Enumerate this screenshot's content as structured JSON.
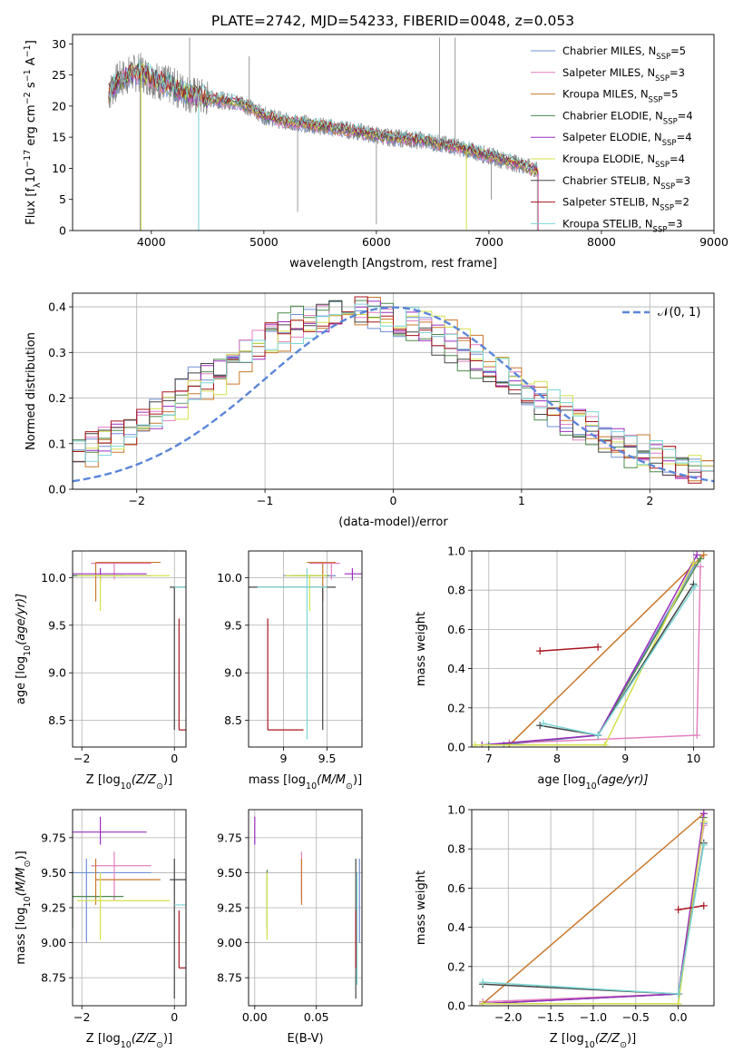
{
  "title": "PLATE=2742, MJD=54233, FIBERID=0048, z=0.053",
  "colors": {
    "Chabrier MILES": "#6f8fd6",
    "Salpeter MILES": "#e37fc0",
    "Kroupa MILES": "#c8782b",
    "Chabrier ELODIE": "#4b8a4b",
    "Salpeter ELODIE": "#9b2fc0",
    "Kroupa ELODIE": "#d4e04a",
    "Chabrier STELIB": "#454545",
    "Salpeter STELIB": "#a8151e",
    "Kroupa STELIB": "#7cd6d6",
    "normal": "#5b86d9",
    "data": "#808080"
  },
  "chart_data": [
    {
      "id": "spectrum",
      "type": "line",
      "title": "PLATE=2742, MJD=54233, FIBERID=0048, z=0.053",
      "xlabel": "wavelength [Angstrom, rest frame]",
      "ylabel_main": "Flux [f",
      "ylabel_sub": "λ",
      "ylabel_rest": "10",
      "ylabel_sup1": "−17",
      "ylabel_mid": " erg cm",
      "ylabel_sup2": "−2",
      "ylabel_mid2": " s",
      "ylabel_sup3": "−1",
      "ylabel_end": " A",
      "ylabel_sup4": "−1",
      "ylabel_close": "]",
      "xlim": [
        3300,
        9000
      ],
      "ylim": [
        0,
        31.5
      ],
      "xticks": [
        4000,
        5000,
        6000,
        7000,
        8000,
        9000
      ],
      "yticks": [
        0,
        5,
        10,
        15,
        20,
        25,
        30
      ],
      "grid": false,
      "legend_position": "top-right",
      "legend": [
        {
          "model": "Chabrier MILES",
          "nssp": "5"
        },
        {
          "model": "Salpeter MILES",
          "nssp": "3"
        },
        {
          "model": "Kroupa MILES",
          "nssp": "5"
        },
        {
          "model": "Chabrier ELODIE",
          "nssp": "4"
        },
        {
          "model": "Salpeter ELODIE",
          "nssp": "4"
        },
        {
          "model": "Kroupa ELODIE",
          "nssp": "4"
        },
        {
          "model": "Chabrier STELIB",
          "nssp": "3"
        },
        {
          "model": "Salpeter STELIB",
          "nssp": "2"
        },
        {
          "model": "Kroupa STELIB",
          "nssp": "3"
        }
      ],
      "legend_label_fmt": ", N",
      "legend_sub": "SSP",
      "continuum": [
        [
          3620,
          22
        ],
        [
          3700,
          24
        ],
        [
          3800,
          25
        ],
        [
          3900,
          25.5
        ],
        [
          4000,
          24.5
        ],
        [
          4200,
          23
        ],
        [
          4400,
          21.5
        ],
        [
          4600,
          21
        ],
        [
          4800,
          20.5
        ],
        [
          5000,
          18.5
        ],
        [
          5200,
          17.5
        ],
        [
          5500,
          16.8
        ],
        [
          5800,
          16
        ],
        [
          6100,
          15
        ],
        [
          6400,
          14.5
        ],
        [
          6700,
          13.5
        ],
        [
          6900,
          12.5
        ],
        [
          7100,
          11.5
        ],
        [
          7300,
          10.5
        ],
        [
          7440,
          9.5
        ]
      ]
    },
    {
      "id": "residuals",
      "type": "line",
      "xlabel": "(data-model)/error",
      "ylabel": "Normed distribution",
      "xlim": [
        -2.5,
        2.5
      ],
      "ylim": [
        0,
        0.43
      ],
      "xticks": [
        -2,
        -1,
        0,
        1,
        2
      ],
      "yticks": [
        0.0,
        0.1,
        0.2,
        0.3,
        0.4
      ],
      "grid": true,
      "legend_position": "top-right",
      "legend_label": "𝒩(0, 1)",
      "normal": {
        "mean": 0,
        "sigma": 1
      },
      "hist_bins": {
        "start": -2.5,
        "width": 0.1,
        "count": 50
      }
    },
    {
      "id": "age-vs-z",
      "type": "scatter",
      "xlabel": "Z [log",
      "xlabel_sub": "10",
      "xlabel_rest": "(Z/Z",
      "xlabel_sub2": "⊙",
      "xlabel_end": ")]",
      "ylabel": "age  [log",
      "ylabel_sub": "10",
      "ylabel_rest": "(age/yr)]",
      "xlim": [
        -2.2,
        0.25
      ],
      "ylim": [
        8.22,
        10.28
      ],
      "xticks": [
        -2,
        0
      ],
      "yticks": [
        8.5,
        9.0,
        9.5,
        10.0
      ],
      "grid": true
    },
    {
      "id": "age-vs-mass",
      "type": "scatter",
      "xlabel": "mass [log",
      "xlabel_sub": "10",
      "xlabel_rest": "(M/M",
      "xlabel_sub2": "⊙",
      "xlabel_end": ")]",
      "xlim": [
        8.6,
        9.9
      ],
      "ylim": [
        8.22,
        10.28
      ],
      "xticks": [
        9.0,
        9.5
      ],
      "yticks": [
        8.5,
        9.0,
        9.5,
        10.0
      ],
      "grid": true
    },
    {
      "id": "weight-vs-age",
      "type": "line",
      "xlabel": "age  [log",
      "xlabel_sub": "10",
      "xlabel_rest": "(age/yr)]",
      "ylabel": "mass weight",
      "xlim": [
        6.75,
        10.3
      ],
      "ylim": [
        0,
        1.0
      ],
      "xticks": [
        7,
        8,
        9,
        10
      ],
      "yticks": [
        0.0,
        0.2,
        0.4,
        0.6,
        0.8,
        1.0
      ],
      "grid": true
    },
    {
      "id": "mass-vs-z",
      "type": "scatter",
      "xlabel": "Z [log",
      "xlabel_sub": "10",
      "xlabel_rest": "(Z/Z",
      "xlabel_sub2": "⊙",
      "xlabel_end": ")]",
      "ylabel": "mass [log",
      "ylabel_sub": "10",
      "ylabel_rest": "(M/M",
      "ylabel_sub2": "⊙",
      "ylabel_end": ")]",
      "xlim": [
        -2.2,
        0.25
      ],
      "ylim": [
        8.55,
        9.95
      ],
      "xticks": [
        -2,
        0
      ],
      "yticks": [
        8.75,
        9.0,
        9.25,
        9.5,
        9.75
      ],
      "grid": true
    },
    {
      "id": "mass-vs-ebv",
      "type": "scatter",
      "xlabel": "E(B-V)",
      "xlim": [
        -0.005,
        0.087
      ],
      "ylim": [
        8.55,
        9.95
      ],
      "xticks": [
        0.0,
        0.05
      ],
      "xticklabels": [
        "0.00",
        "0.05"
      ],
      "yticks": [
        8.75,
        9.0,
        9.25,
        9.5,
        9.75
      ],
      "grid": true
    },
    {
      "id": "weight-vs-z",
      "type": "line",
      "xlabel": "Z [log",
      "xlabel_sub": "10",
      "xlabel_rest": "(Z/Z",
      "xlabel_sub2": "⊙",
      "xlabel_end": ")]",
      "ylabel": "mass weight",
      "xlim": [
        -2.43,
        0.42
      ],
      "ylim": [
        0,
        1.0
      ],
      "xticks": [
        -2.0,
        -1.5,
        -1.0,
        -0.5,
        0.0
      ],
      "xticklabels": [
        "−2.0",
        "−1.5",
        "−1.0",
        "−0.5",
        "0.0"
      ],
      "yticks": [
        0.0,
        0.2,
        0.4,
        0.6,
        0.8,
        1.0
      ],
      "grid": true
    }
  ],
  "models": [
    {
      "name": "Chabrier MILES",
      "z": -1.9,
      "z_lo": -2.2,
      "z_hi": -0.5,
      "age": 10.02,
      "age_lo": 10.02,
      "age_hi": 10.02,
      "mass": 9.5,
      "mass_lo": 9.0,
      "mass_hi": 9.6,
      "ebv": 0.085,
      "ages": [
        7.22,
        8.6,
        10.02
      ],
      "weights": [
        0.01,
        0.06,
        0.93
      ],
      "zs": [
        -2.3,
        0.0,
        0.3
      ]
    },
    {
      "name": "Salpeter MILES",
      "z": -1.3,
      "z_lo": -1.8,
      "z_hi": -0.5,
      "age": 10.15,
      "age_lo": 9.98,
      "age_hi": 10.16,
      "mass": 9.55,
      "mass_lo": 9.3,
      "mass_hi": 9.65,
      "ebv": 0.038,
      "ages": [
        7.3,
        10.05,
        10.1
      ],
      "weights": [
        0.02,
        0.06,
        0.92
      ],
      "zs": [
        -2.3,
        0.0,
        0.3
      ]
    },
    {
      "name": "Kroupa MILES",
      "z": -1.7,
      "z_lo": -1.7,
      "z_hi": -0.3,
      "age": 10.16,
      "age_lo": 9.75,
      "age_hi": 10.16,
      "mass": 9.45,
      "mass_lo": 9.27,
      "mass_hi": 9.6,
      "ebv": 0.038,
      "ages": [
        7.3,
        10.15
      ],
      "weights": [
        0.01,
        0.98
      ],
      "zs": [
        -2.3,
        0.3
      ]
    },
    {
      "name": "Chabrier ELODIE",
      "z": -2.2,
      "z_lo": -2.2,
      "z_hi": -1.1,
      "age": 10.02,
      "age_lo": 10.02,
      "age_hi": 10.02,
      "mass": 9.33,
      "mass_lo": 9.1,
      "mass_hi": 9.52,
      "ebv": 0.01,
      "ages": [
        7.0,
        8.6,
        10.1
      ],
      "weights": [
        0.01,
        0.06,
        0.96
      ],
      "zs": [
        -2.3,
        0.0,
        0.3
      ]
    },
    {
      "name": "Salpeter ELODIE",
      "z": -1.6,
      "z_lo": -2.2,
      "z_hi": -0.6,
      "age": 10.04,
      "age_lo": 9.97,
      "age_hi": 10.1,
      "mass": 9.79,
      "mass_lo": 9.7,
      "mass_hi": 9.9,
      "ebv": 0.0,
      "ages": [
        6.9,
        8.6,
        10.05
      ],
      "weights": [
        0.01,
        0.06,
        0.98
      ],
      "zs": [
        -2.3,
        0.0,
        0.3
      ]
    },
    {
      "name": "Kroupa ELODIE",
      "z": -1.6,
      "z_lo": -2.1,
      "z_hi": -0.1,
      "age": 10.02,
      "age_lo": 9.65,
      "age_hi": 10.03,
      "mass": 9.3,
      "mass_lo": 9.02,
      "mass_hi": 9.5,
      "ebv": 0.01,
      "ages": [
        6.8,
        8.7,
        10.0
      ],
      "weights": [
        0.01,
        0.01,
        0.94
      ],
      "zs": [
        -2.3,
        0.0,
        0.3
      ]
    },
    {
      "name": "Chabrier STELIB",
      "z": 0.0,
      "z_lo": -0.1,
      "z_hi": 0.3,
      "age": 9.9,
      "age_lo": 8.4,
      "age_hi": 9.9,
      "mass": 9.45,
      "mass_lo": 8.6,
      "mass_hi": 9.6,
      "ebv": 0.082,
      "ages": [
        7.75,
        8.6,
        10.0
      ],
      "weights": [
        0.11,
        0.06,
        0.83
      ],
      "zs": [
        -2.3,
        0.0,
        0.3
      ]
    },
    {
      "name": "Salpeter STELIB",
      "z": 0.1,
      "z_lo": 0.1,
      "z_hi": 0.3,
      "age": 8.4,
      "age_lo": 8.4,
      "age_hi": 9.57,
      "mass": 8.82,
      "mass_lo": 8.82,
      "mass_hi": 9.23,
      "ebv": 0.082,
      "ages": [
        7.75,
        8.6
      ],
      "weights": [
        0.49,
        0.51
      ],
      "zs": [
        0.0,
        0.3
      ]
    },
    {
      "name": "Kroupa STELIB",
      "z": 0.3,
      "z_lo": 0.0,
      "z_hi": 0.3,
      "age": 9.9,
      "age_lo": 8.3,
      "age_hi": 10.1,
      "mass": 9.27,
      "mass_lo": 8.7,
      "mass_hi": 9.5,
      "ebv": 0.083,
      "ages": [
        7.8,
        8.6,
        10.02
      ],
      "weights": [
        0.12,
        0.06,
        0.82
      ],
      "zs": [
        -2.3,
        0.0,
        0.3
      ]
    }
  ]
}
